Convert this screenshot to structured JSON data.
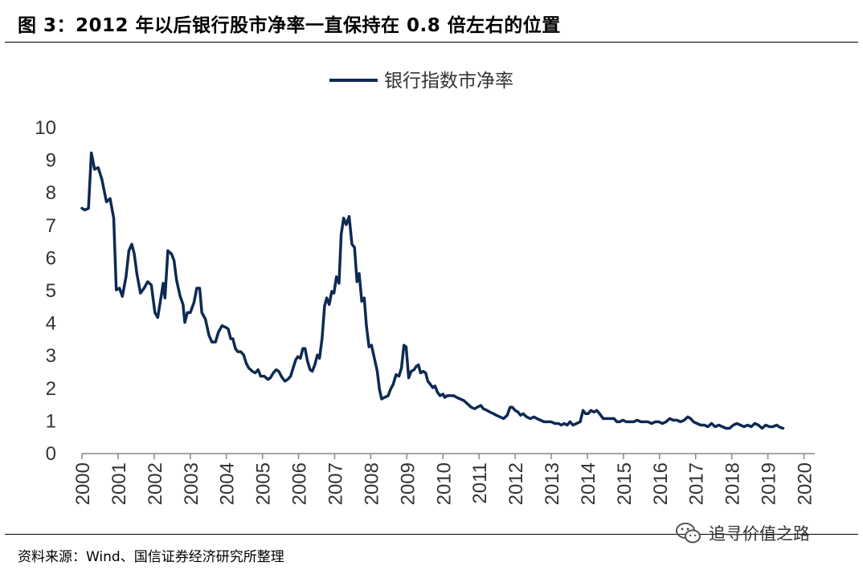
{
  "figure": {
    "title": "图 3：2012 年以后银行股市净率一直保持在 0.8 倍左右的位置",
    "source": "资料来源：Wind、国信证券经济研究所整理",
    "watermark": "追寻价值之路"
  },
  "colors": {
    "series": "#0d2a52",
    "axis": "#888888",
    "text": "#333333"
  },
  "chart_data": {
    "type": "line",
    "title": "",
    "xlabel": "",
    "ylabel": "",
    "ylim": [
      0,
      10
    ],
    "xlim": [
      2000,
      2020.3
    ],
    "yticks": [
      "0",
      "1",
      "2",
      "3",
      "4",
      "5",
      "6",
      "7",
      "8",
      "9",
      "10"
    ],
    "xticks": [
      "2000",
      "2001",
      "2002",
      "2003",
      "2004",
      "2005",
      "2006",
      "2007",
      "2008",
      "2009",
      "2010",
      "2011",
      "2012",
      "2013",
      "2014",
      "2015",
      "2016",
      "2017",
      "2018",
      "2019",
      "2020"
    ],
    "grid": false,
    "legend": "top-center",
    "series": [
      {
        "name": "银行指数市净率",
        "points": [
          [
            2000.0,
            7.5
          ],
          [
            2000.08,
            7.45
          ],
          [
            2000.18,
            7.5
          ],
          [
            2000.26,
            9.2
          ],
          [
            2000.35,
            8.7
          ],
          [
            2000.45,
            8.75
          ],
          [
            2000.55,
            8.4
          ],
          [
            2000.68,
            7.7
          ],
          [
            2000.78,
            7.8
          ],
          [
            2000.88,
            7.2
          ],
          [
            2000.95,
            5.0
          ],
          [
            2001.04,
            5.05
          ],
          [
            2001.12,
            4.8
          ],
          [
            2001.22,
            5.4
          ],
          [
            2001.3,
            6.2
          ],
          [
            2001.38,
            6.4
          ],
          [
            2001.45,
            6.1
          ],
          [
            2001.52,
            5.5
          ],
          [
            2001.62,
            4.9
          ],
          [
            2001.72,
            5.05
          ],
          [
            2001.82,
            5.25
          ],
          [
            2001.92,
            5.15
          ],
          [
            2002.02,
            4.3
          ],
          [
            2002.1,
            4.15
          ],
          [
            2002.18,
            4.7
          ],
          [
            2002.25,
            5.2
          ],
          [
            2002.3,
            4.75
          ],
          [
            2002.38,
            6.2
          ],
          [
            2002.48,
            6.1
          ],
          [
            2002.55,
            5.9
          ],
          [
            2002.62,
            5.3
          ],
          [
            2002.72,
            4.8
          ],
          [
            2002.8,
            4.55
          ],
          [
            2002.85,
            4.0
          ],
          [
            2002.92,
            4.3
          ],
          [
            2003.0,
            4.3
          ],
          [
            2003.1,
            4.6
          ],
          [
            2003.18,
            5.05
          ],
          [
            2003.26,
            5.05
          ],
          [
            2003.32,
            4.3
          ],
          [
            2003.42,
            4.1
          ],
          [
            2003.52,
            3.6
          ],
          [
            2003.6,
            3.4
          ],
          [
            2003.7,
            3.4
          ],
          [
            2003.78,
            3.7
          ],
          [
            2003.88,
            3.9
          ],
          [
            2003.98,
            3.85
          ],
          [
            2004.05,
            3.8
          ],
          [
            2004.12,
            3.5
          ],
          [
            2004.18,
            3.5
          ],
          [
            2004.25,
            3.2
          ],
          [
            2004.32,
            3.1
          ],
          [
            2004.4,
            3.1
          ],
          [
            2004.48,
            3.0
          ],
          [
            2004.55,
            2.75
          ],
          [
            2004.62,
            2.6
          ],
          [
            2004.72,
            2.5
          ],
          [
            2004.8,
            2.45
          ],
          [
            2004.88,
            2.55
          ],
          [
            2004.95,
            2.35
          ],
          [
            2005.05,
            2.35
          ],
          [
            2005.15,
            2.25
          ],
          [
            2005.22,
            2.3
          ],
          [
            2005.3,
            2.45
          ],
          [
            2005.38,
            2.55
          ],
          [
            2005.45,
            2.5
          ],
          [
            2005.55,
            2.3
          ],
          [
            2005.62,
            2.2
          ],
          [
            2005.7,
            2.25
          ],
          [
            2005.78,
            2.35
          ],
          [
            2005.85,
            2.6
          ],
          [
            2005.92,
            2.85
          ],
          [
            2005.98,
            2.95
          ],
          [
            2006.05,
            2.9
          ],
          [
            2006.12,
            3.2
          ],
          [
            2006.18,
            3.2
          ],
          [
            2006.25,
            2.8
          ],
          [
            2006.32,
            2.55
          ],
          [
            2006.38,
            2.5
          ],
          [
            2006.45,
            2.7
          ],
          [
            2006.52,
            3.0
          ],
          [
            2006.58,
            2.9
          ],
          [
            2006.65,
            3.5
          ],
          [
            2006.72,
            4.5
          ],
          [
            2006.78,
            4.75
          ],
          [
            2006.85,
            4.55
          ],
          [
            2006.92,
            4.95
          ],
          [
            2006.98,
            4.9
          ],
          [
            2007.05,
            5.4
          ],
          [
            2007.12,
            5.2
          ],
          [
            2007.18,
            6.7
          ],
          [
            2007.25,
            7.2
          ],
          [
            2007.32,
            7.0
          ],
          [
            2007.4,
            7.25
          ],
          [
            2007.48,
            6.4
          ],
          [
            2007.55,
            6.3
          ],
          [
            2007.62,
            5.25
          ],
          [
            2007.68,
            5.5
          ],
          [
            2007.75,
            4.65
          ],
          [
            2007.82,
            4.75
          ],
          [
            2007.88,
            3.9
          ],
          [
            2007.95,
            3.25
          ],
          [
            2008.02,
            3.3
          ],
          [
            2008.1,
            2.9
          ],
          [
            2008.18,
            2.5
          ],
          [
            2008.24,
            1.95
          ],
          [
            2008.3,
            1.65
          ],
          [
            2008.38,
            1.7
          ],
          [
            2008.48,
            1.75
          ],
          [
            2008.55,
            1.95
          ],
          [
            2008.62,
            2.1
          ],
          [
            2008.7,
            2.4
          ],
          [
            2008.78,
            2.35
          ],
          [
            2008.85,
            2.6
          ],
          [
            2008.92,
            3.3
          ],
          [
            2008.98,
            3.25
          ],
          [
            2009.05,
            2.3
          ],
          [
            2009.12,
            2.5
          ],
          [
            2009.2,
            2.55
          ],
          [
            2009.26,
            2.65
          ],
          [
            2009.32,
            2.7
          ],
          [
            2009.38,
            2.45
          ],
          [
            2009.45,
            2.5
          ],
          [
            2009.52,
            2.45
          ],
          [
            2009.58,
            2.2
          ],
          [
            2009.65,
            2.1
          ],
          [
            2009.72,
            2.0
          ],
          [
            2009.78,
            2.05
          ],
          [
            2009.85,
            1.85
          ],
          [
            2009.92,
            1.75
          ],
          [
            2010.0,
            1.8
          ],
          [
            2010.05,
            1.7
          ],
          [
            2010.12,
            1.75
          ],
          [
            2010.22,
            1.75
          ],
          [
            2010.3,
            1.75
          ],
          [
            2010.38,
            1.7
          ],
          [
            2010.48,
            1.65
          ],
          [
            2010.58,
            1.6
          ],
          [
            2010.68,
            1.5
          ],
          [
            2010.78,
            1.4
          ],
          [
            2010.88,
            1.35
          ],
          [
            2010.95,
            1.4
          ],
          [
            2011.05,
            1.45
          ],
          [
            2011.12,
            1.35
          ],
          [
            2011.22,
            1.3
          ],
          [
            2011.3,
            1.25
          ],
          [
            2011.4,
            1.2
          ],
          [
            2011.48,
            1.15
          ],
          [
            2011.58,
            1.1
          ],
          [
            2011.68,
            1.05
          ],
          [
            2011.78,
            1.15
          ],
          [
            2011.86,
            1.4
          ],
          [
            2011.92,
            1.4
          ],
          [
            2012.0,
            1.3
          ],
          [
            2012.08,
            1.25
          ],
          [
            2012.15,
            1.15
          ],
          [
            2012.22,
            1.2
          ],
          [
            2012.32,
            1.1
          ],
          [
            2012.42,
            1.05
          ],
          [
            2012.52,
            1.1
          ],
          [
            2012.6,
            1.05
          ],
          [
            2012.7,
            1.0
          ],
          [
            2012.8,
            0.95
          ],
          [
            2012.9,
            0.95
          ],
          [
            2013.0,
            0.95
          ],
          [
            2013.1,
            0.9
          ],
          [
            2013.2,
            0.9
          ],
          [
            2013.28,
            0.85
          ],
          [
            2013.36,
            0.9
          ],
          [
            2013.44,
            0.85
          ],
          [
            2013.52,
            0.95
          ],
          [
            2013.6,
            0.85
          ],
          [
            2013.7,
            0.9
          ],
          [
            2013.8,
            0.95
          ],
          [
            2013.88,
            1.3
          ],
          [
            2013.95,
            1.2
          ],
          [
            2014.02,
            1.2
          ],
          [
            2014.1,
            1.3
          ],
          [
            2014.18,
            1.25
          ],
          [
            2014.26,
            1.3
          ],
          [
            2014.34,
            1.2
          ],
          [
            2014.44,
            1.05
          ],
          [
            2014.54,
            1.05
          ],
          [
            2014.64,
            1.05
          ],
          [
            2014.74,
            1.05
          ],
          [
            2014.82,
            0.95
          ],
          [
            2014.9,
            0.95
          ],
          [
            2014.98,
            1.0
          ],
          [
            2015.08,
            0.95
          ],
          [
            2015.18,
            0.95
          ],
          [
            2015.28,
            0.95
          ],
          [
            2015.38,
            1.0
          ],
          [
            2015.48,
            0.95
          ],
          [
            2015.58,
            0.95
          ],
          [
            2015.68,
            0.95
          ],
          [
            2015.78,
            0.9
          ],
          [
            2015.88,
            0.95
          ],
          [
            2015.98,
            0.95
          ],
          [
            2016.08,
            0.9
          ],
          [
            2016.18,
            0.95
          ],
          [
            2016.28,
            1.05
          ],
          [
            2016.38,
            1.0
          ],
          [
            2016.48,
            1.0
          ],
          [
            2016.58,
            0.95
          ],
          [
            2016.68,
            1.0
          ],
          [
            2016.78,
            1.1
          ],
          [
            2016.86,
            1.05
          ],
          [
            2016.94,
            0.95
          ],
          [
            2017.04,
            0.9
          ],
          [
            2017.14,
            0.85
          ],
          [
            2017.24,
            0.85
          ],
          [
            2017.34,
            0.8
          ],
          [
            2017.44,
            0.9
          ],
          [
            2017.54,
            0.8
          ],
          [
            2017.64,
            0.85
          ],
          [
            2017.74,
            0.8
          ],
          [
            2017.84,
            0.75
          ],
          [
            2017.94,
            0.75
          ],
          [
            2018.04,
            0.85
          ],
          [
            2018.14,
            0.9
          ],
          [
            2018.24,
            0.85
          ],
          [
            2018.34,
            0.8
          ],
          [
            2018.44,
            0.85
          ],
          [
            2018.54,
            0.8
          ],
          [
            2018.64,
            0.9
          ],
          [
            2018.74,
            0.85
          ],
          [
            2018.84,
            0.75
          ],
          [
            2018.94,
            0.85
          ],
          [
            2019.04,
            0.8
          ],
          [
            2019.14,
            0.8
          ],
          [
            2019.24,
            0.85
          ],
          [
            2019.34,
            0.78
          ],
          [
            2019.42,
            0.75
          ]
        ]
      }
    ]
  }
}
